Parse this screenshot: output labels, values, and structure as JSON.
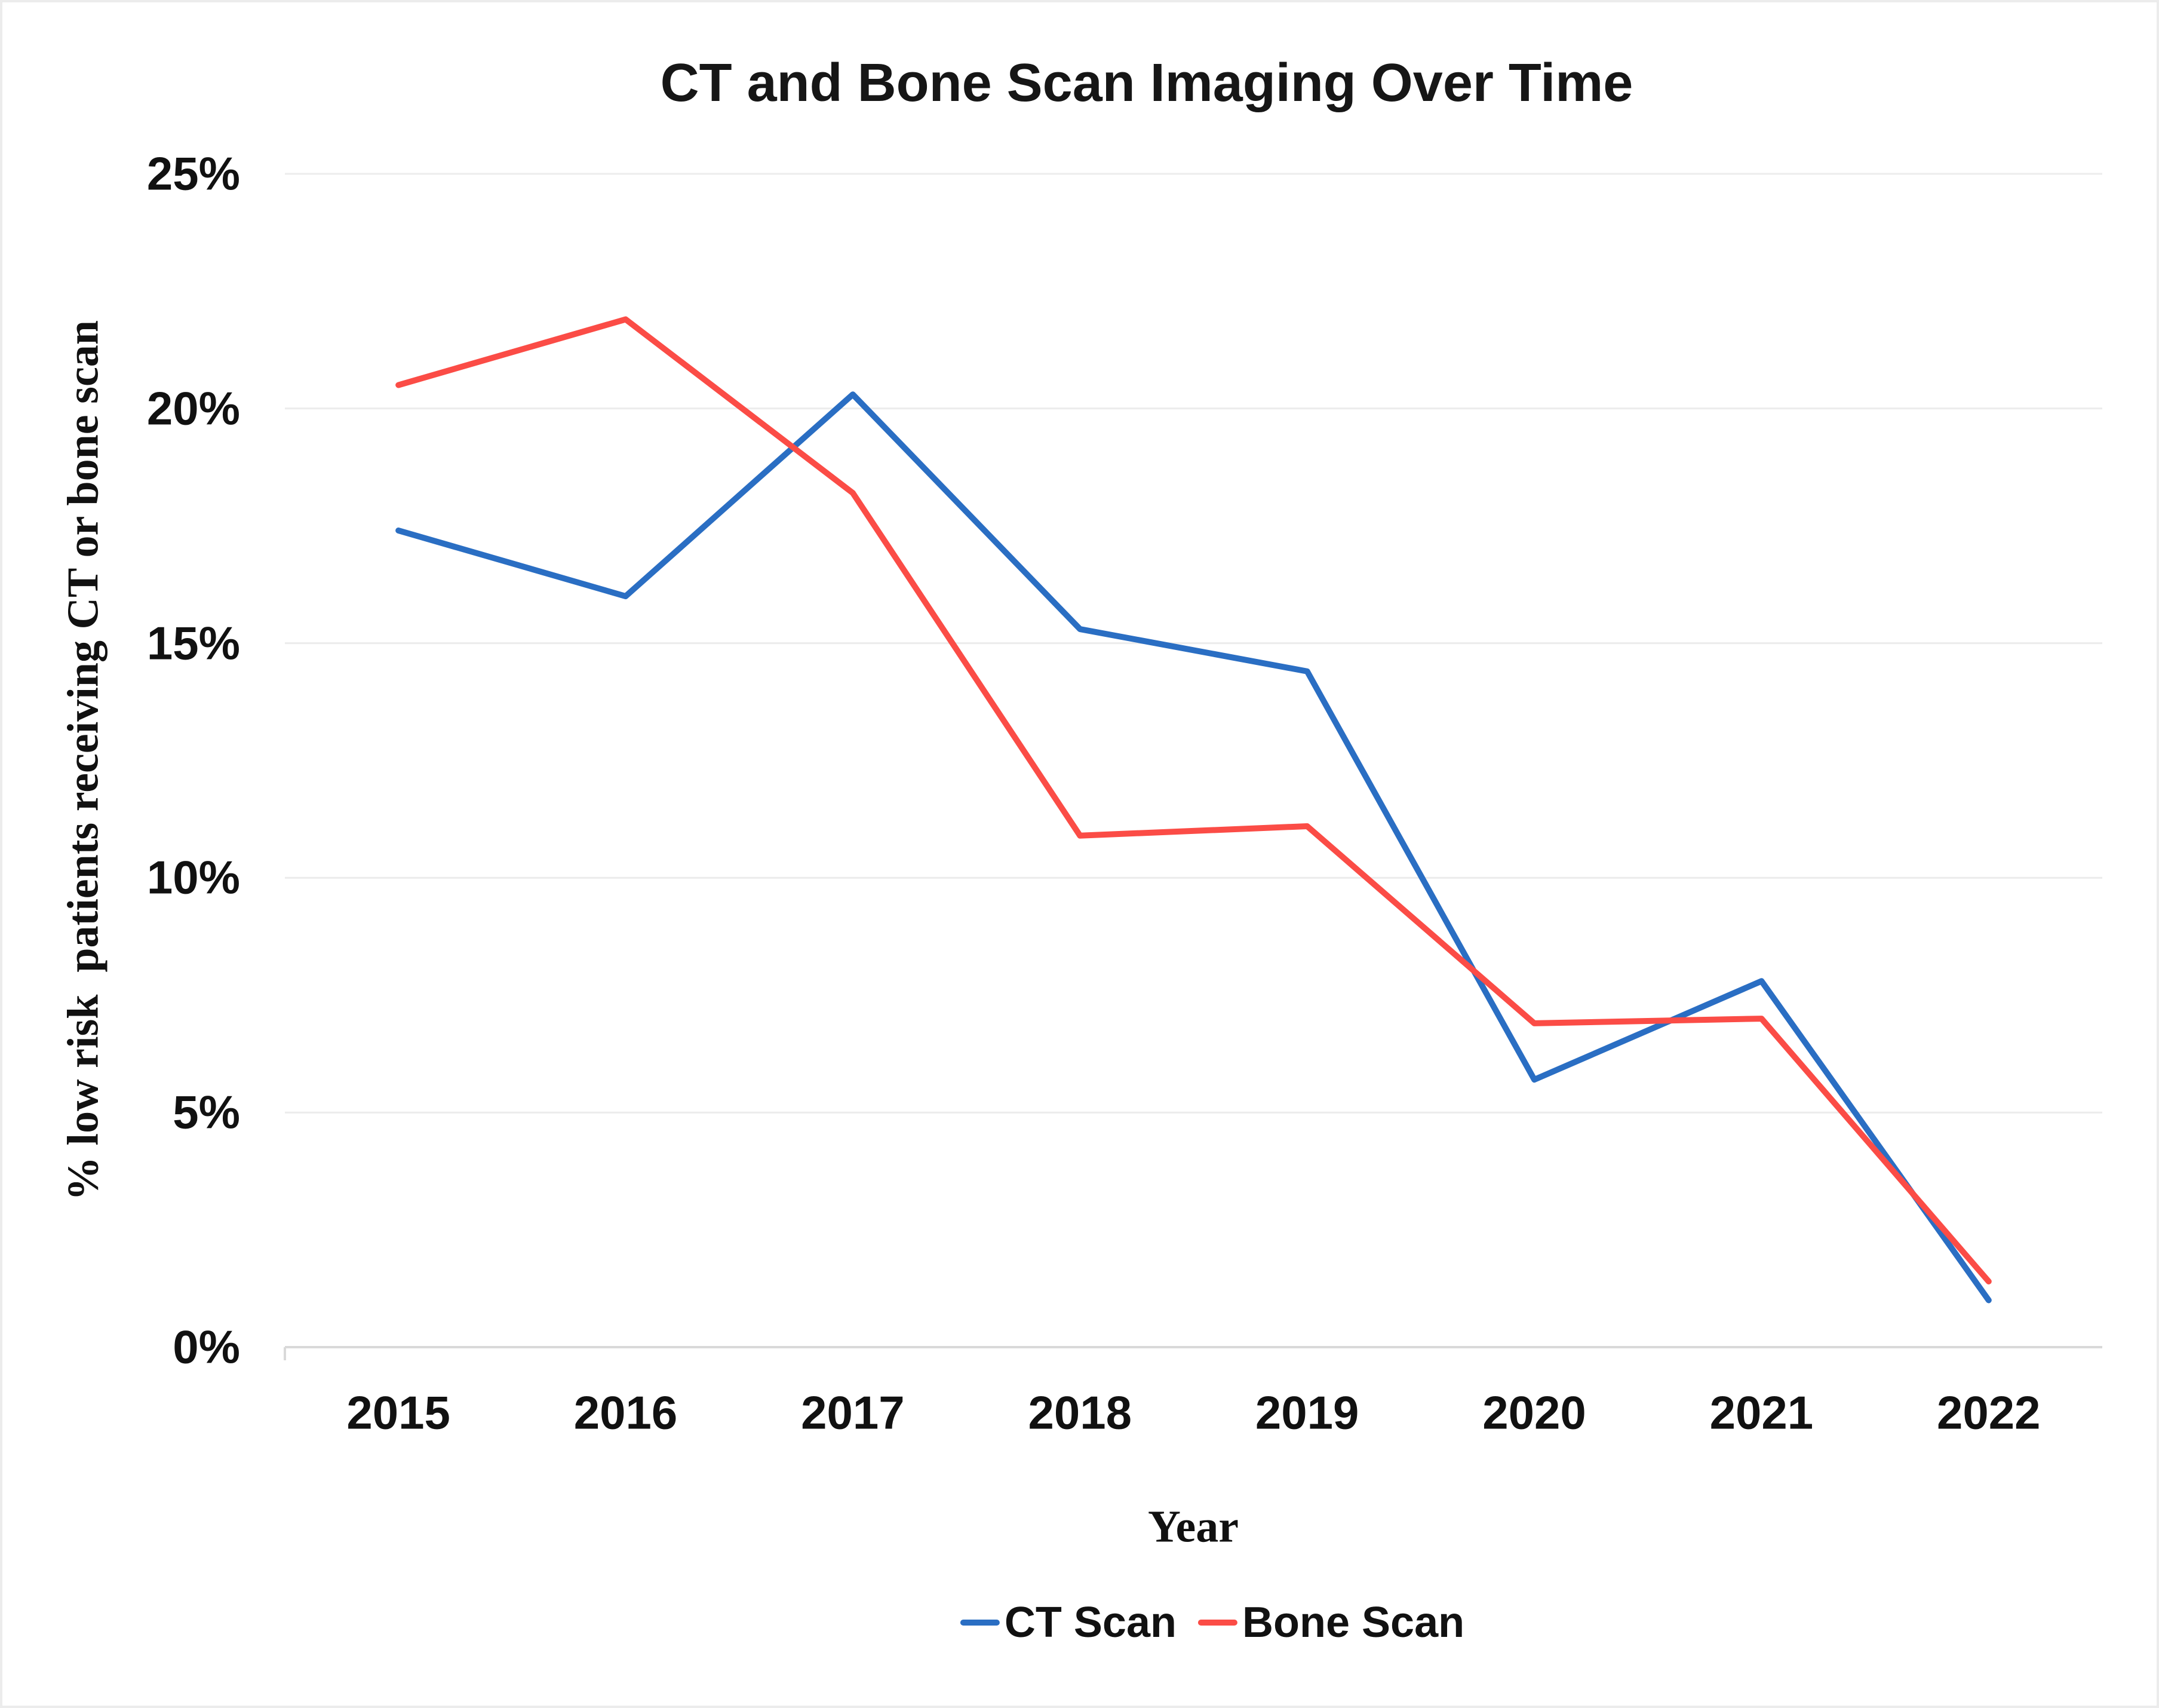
{
  "page": {
    "background": "#ffffff",
    "border_color": "#ececec"
  },
  "chart_data": {
    "type": "line",
    "title": "CT and Bone Scan Imaging Over Time",
    "xlabel": "Year",
    "ylabel": "% low risk  patients receiving CT or bone scan",
    "categories": [
      "2015",
      "2016",
      "2017",
      "2018",
      "2019",
      "2020",
      "2021",
      "2022"
    ],
    "series": [
      {
        "name": "CT Scan",
        "color": "#2A6EC3",
        "values": [
          17.4,
          16.0,
          20.3,
          15.3,
          14.4,
          5.7,
          7.8,
          1.0
        ]
      },
      {
        "name": "Bone Scan",
        "color": "#FB4C46",
        "values": [
          20.5,
          21.9,
          18.2,
          10.9,
          11.1,
          6.9,
          7.0,
          1.4
        ]
      }
    ],
    "ylim": [
      0,
      25
    ],
    "ytick_step": 5,
    "ytick_labels": [
      "0%",
      "5%",
      "10%",
      "15%",
      "20%",
      "25%"
    ],
    "grid": "horizontal",
    "grid_color": "#ececec",
    "axis_line_color": "#d9d9d9",
    "line_width": 10,
    "legend_position": "bottom",
    "text_color": "#111111"
  }
}
